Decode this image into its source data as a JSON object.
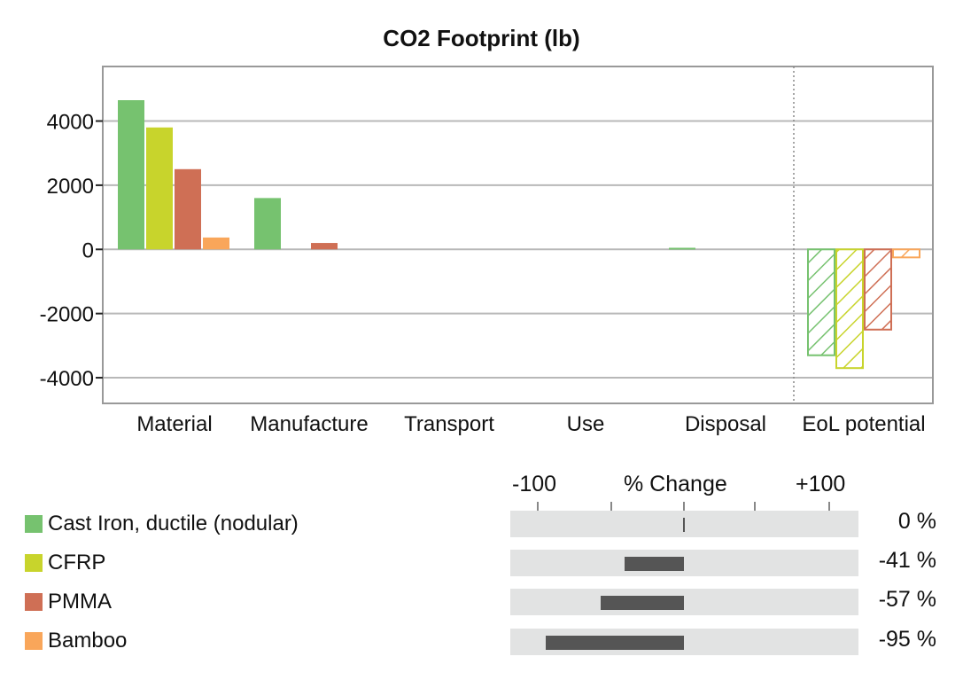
{
  "chart_data": {
    "type": "bar",
    "title": "CO2 Footprint (lb)",
    "categories": [
      "Material",
      "Manufacture",
      "Transport",
      "Use",
      "Disposal",
      "EoL potential"
    ],
    "ylim": [
      -4800,
      5700
    ],
    "yticks": [
      4000,
      2000,
      0,
      -2000,
      -4000
    ],
    "ytick_labels": [
      "4000",
      "2000",
      "0",
      "-2000",
      "-4000"
    ],
    "grid": true,
    "series": [
      {
        "name": "Cast Iron, ductile (nodular)",
        "color": "#76c26f",
        "values": [
          4650,
          1600,
          0,
          0,
          50,
          -3300
        ]
      },
      {
        "name": "CFRP",
        "color": "#c8d42c",
        "values": [
          3800,
          0,
          0,
          0,
          0,
          -3700
        ]
      },
      {
        "name": "PMMA",
        "color": "#cf6f55",
        "values": [
          2500,
          200,
          0,
          0,
          0,
          -2500
        ]
      },
      {
        "name": "Bamboo",
        "color": "#f9a65a",
        "values": [
          370,
          0,
          0,
          0,
          0,
          -250
        ]
      }
    ],
    "hatched_category": "EoL potential"
  },
  "change_panel": {
    "header_left": "-100",
    "header_mid": "% Change",
    "header_right": "+100",
    "rows": [
      {
        "pct": 0,
        "label": "0 %"
      },
      {
        "pct": -41,
        "label": "-41 %"
      },
      {
        "pct": -57,
        "label": "-57 %"
      },
      {
        "pct": -95,
        "label": "-95 %"
      }
    ]
  }
}
